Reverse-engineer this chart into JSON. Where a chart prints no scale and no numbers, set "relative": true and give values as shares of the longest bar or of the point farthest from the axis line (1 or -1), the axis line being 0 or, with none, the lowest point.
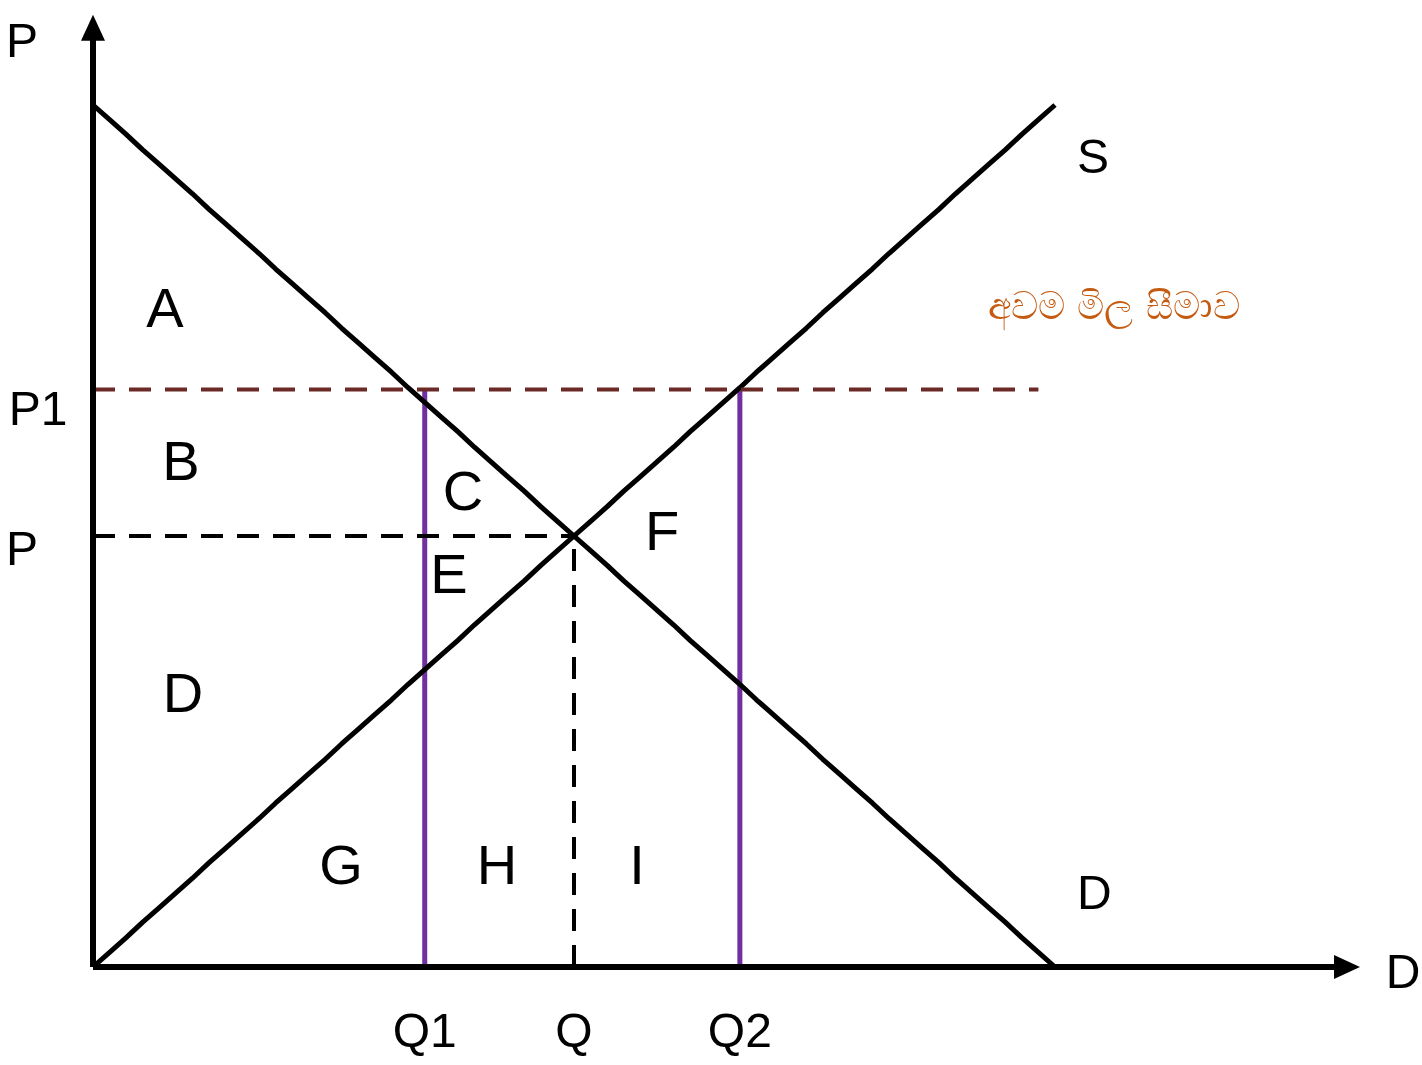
{
  "chart_data": {
    "type": "line",
    "relative": true,
    "ylabel": "P",
    "line_style": "solid",
    "marker": "none",
    "categories": [
      null,
      null,
      null,
      null,
      null,
      null,
      null,
      null,
      null,
      null,
      null,
      null,
      null,
      null,
      null,
      null,
      null,
      null,
      null,
      null,
      "Q1",
      null,
      null,
      null,
      null,
      null,
      null,
      null,
      null,
      "Q",
      null,
      null,
      null,
      null,
      null,
      null,
      null,
      null,
      null,
      "Q2",
      null,
      null,
      null,
      null,
      null,
      null,
      null,
      null,
      null,
      null,
      null,
      null,
      null,
      null,
      null,
      null,
      null,
      null,
      null
    ],
    "series": [
      {
        "name": "S",
        "color": "#000000",
        "values": [
          0,
          0.017,
          0.034,
          0.052,
          0.069,
          0.086,
          0.103,
          0.121,
          0.138,
          0.155,
          0.172,
          0.19,
          0.207,
          0.224,
          0.241,
          0.259,
          0.276,
          0.293,
          0.31,
          0.328,
          0.345,
          0.362,
          0.379,
          0.397,
          0.414,
          0.431,
          0.448,
          0.466,
          0.483,
          0.5,
          0.517,
          0.534,
          0.552,
          0.569,
          0.586,
          0.603,
          0.621,
          0.638,
          0.655,
          0.672,
          0.69,
          0.707,
          0.724,
          0.741,
          0.759,
          0.776,
          0.793,
          0.81,
          0.828,
          0.845,
          0.862,
          0.879,
          0.897,
          0.914,
          0.931,
          0.948,
          0.966,
          0.983,
          1
        ]
      },
      {
        "name": "D",
        "color": "#000000",
        "values": [
          1,
          0.983,
          0.966,
          0.948,
          0.931,
          0.914,
          0.897,
          0.879,
          0.862,
          0.845,
          0.828,
          0.81,
          0.793,
          0.776,
          0.759,
          0.741,
          0.724,
          0.707,
          0.69,
          0.672,
          0.655,
          0.638,
          0.621,
          0.603,
          0.586,
          0.569,
          0.552,
          0.534,
          0.517,
          0.5,
          0.483,
          0.466,
          0.448,
          0.431,
          0.414,
          0.397,
          0.379,
          0.362,
          0.345,
          0.328,
          0.31,
          0.293,
          0.276,
          0.259,
          0.241,
          0.224,
          0.207,
          0.19,
          0.172,
          0.155,
          0.138,
          0.121,
          0.103,
          0.086,
          0.069,
          0.052,
          0.034,
          0.017,
          0
        ]
      },
      {
        "name": "අවම මිල සීමාව",
        "color": "#6b2a26",
        "line_style": "dashed",
        "values": [
          0.67,
          0.67,
          0.67,
          0.67,
          0.67,
          0.67,
          0.67,
          0.67,
          0.67,
          0.67,
          0.67,
          0.67,
          0.67,
          0.67,
          0.67,
          0.67,
          0.67,
          0.67,
          0.67,
          0.67,
          0.67,
          0.67,
          0.67,
          0.67,
          0.67,
          0.67,
          0.67,
          0.67,
          0.67,
          0.67,
          0.67,
          0.67,
          0.67,
          0.67,
          0.67,
          0.67,
          0.67,
          0.67,
          0.67,
          0.67,
          0.67,
          0.67,
          0.67,
          0.67,
          0.67,
          0.67,
          0.67,
          0.67,
          0.67,
          0.67,
          0.67,
          0.67,
          0.67,
          0.67,
          0.67,
          0.67,
          0.67,
          0.67,
          null
        ]
      },
      {
        "color": "#000000",
        "line_style": "dashed",
        "values": [
          0.5,
          0.5,
          0.5,
          0.5,
          0.5,
          0.5,
          0.5,
          0.5,
          0.5,
          0.5,
          0.5,
          0.5,
          0.5,
          0.5,
          0.5,
          0.5,
          0.5,
          0.5,
          0.5,
          0.5,
          0.5,
          0.5,
          0.5,
          0.5,
          0.5,
          0.5,
          0.5,
          0.5,
          0.5,
          0.5,
          null,
          null,
          null,
          null,
          null,
          null,
          null,
          null,
          null,
          null,
          null,
          null,
          null,
          null,
          null,
          null,
          null,
          null,
          null,
          null,
          null,
          null,
          null,
          null,
          null,
          null,
          null,
          null,
          null
        ]
      }
    ],
    "ref_lines": [
      {
        "axis": "x",
        "value": "Q1",
        "color": "#7030a0"
      },
      {
        "axis": "x",
        "value": "Q2",
        "color": "#7030a0"
      },
      {
        "axis": "x",
        "value": "Q",
        "color": "#000000",
        "line_style": "dashed"
      }
    ],
    "annotations": [
      "P1",
      "P",
      "A",
      "B",
      "C",
      "E",
      "F",
      "D",
      "G",
      "H",
      "I",
      "D"
    ]
  }
}
